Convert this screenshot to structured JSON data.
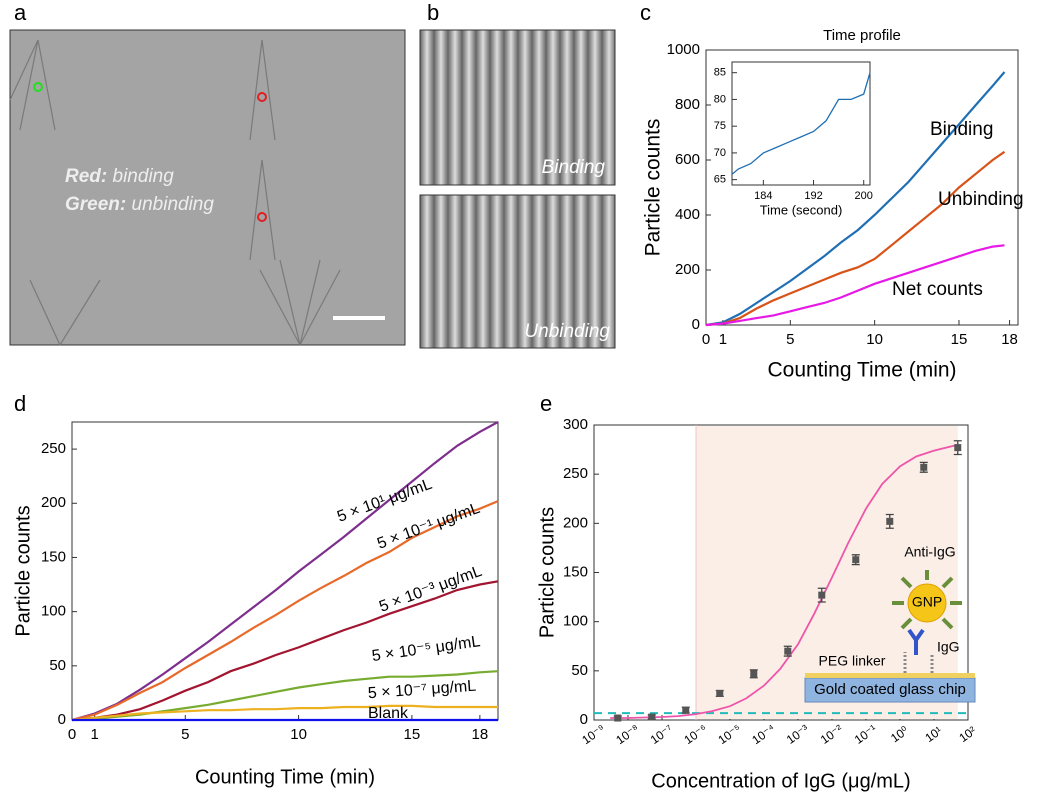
{
  "panel_labels": [
    "a",
    "b",
    "c",
    "d",
    "e"
  ],
  "image_a": {
    "red_label": "Red:",
    "red_text": "binding",
    "green_label": "Green:",
    "green_text": "unbinding"
  },
  "image_b": {
    "labels": [
      "Binding",
      "Unbinding"
    ]
  },
  "chart_data": [
    {
      "type": "line",
      "title": "Time profile",
      "xlabel": "Counting Time (min)",
      "ylabel": "Particle counts",
      "x": [
        0,
        1,
        2,
        3,
        4,
        5,
        6,
        7,
        8,
        9,
        10,
        11,
        12,
        13,
        14,
        15,
        16,
        17,
        17.7
      ],
      "series": [
        {
          "name": "Binding",
          "color": "#1f6fb4",
          "values": [
            0,
            10,
            40,
            80,
            120,
            160,
            205,
            250,
            300,
            345,
            400,
            460,
            520,
            590,
            660,
            730,
            800,
            870,
            920
          ]
        },
        {
          "name": "Unbinding",
          "color": "#d95319",
          "values": [
            0,
            5,
            25,
            60,
            90,
            115,
            140,
            165,
            190,
            210,
            240,
            290,
            340,
            390,
            440,
            500,
            550,
            600,
            630
          ]
        },
        {
          "name": "Net counts",
          "color": "#e619e6",
          "values": [
            0,
            5,
            15,
            25,
            35,
            50,
            65,
            80,
            100,
            125,
            150,
            170,
            190,
            210,
            230,
            250,
            270,
            285,
            290
          ]
        }
      ],
      "xlim": [
        0,
        18.5
      ],
      "ylim": [
        0,
        1000
      ],
      "xticks": [
        0,
        1,
        5,
        10,
        15,
        18
      ],
      "yticks": [
        0,
        200,
        400,
        600,
        800,
        1000
      ],
      "inset": {
        "type": "line",
        "xlabel": "Time (second)",
        "color": "#1f6fb4",
        "x": [
          179,
          180,
          182,
          184,
          186,
          188,
          190,
          192,
          194,
          196,
          198,
          200,
          201
        ],
        "values": [
          66,
          67,
          68,
          70,
          71,
          72,
          73,
          74,
          76,
          80,
          80,
          81,
          85
        ],
        "xlim": [
          179,
          201
        ],
        "ylim": [
          64,
          87
        ],
        "xticks": [
          184,
          192,
          200
        ],
        "yticks": [
          65,
          70,
          75,
          80,
          85
        ]
      }
    },
    {
      "type": "line",
      "xlabel": "Counting Time (min)",
      "ylabel": "Particle counts",
      "x": [
        0,
        1,
        2,
        3,
        4,
        5,
        6,
        7,
        8,
        9,
        10,
        11,
        12,
        13,
        14,
        15,
        16,
        17,
        18,
        18.8
      ],
      "series": [
        {
          "name": "5 × 10¹ μg/mL",
          "color": "#7e2f8e",
          "values": [
            0,
            6,
            15,
            28,
            42,
            57,
            72,
            88,
            104,
            120,
            137,
            153,
            169,
            186,
            203,
            220,
            237,
            253,
            266,
            275
          ]
        },
        {
          "name": "5 × 10⁻¹ μg/mL",
          "color": "#e86a2a",
          "values": [
            0,
            5,
            14,
            25,
            35,
            48,
            60,
            72,
            85,
            97,
            110,
            122,
            133,
            145,
            155,
            168,
            178,
            188,
            195,
            202
          ]
        },
        {
          "name": "5 × 10⁻³ μg/mL",
          "color": "#a2142f",
          "values": [
            0,
            2,
            5,
            10,
            18,
            27,
            35,
            45,
            52,
            60,
            67,
            75,
            83,
            90,
            98,
            105,
            112,
            120,
            125,
            128
          ]
        },
        {
          "name": "5 × 10⁻⁵ μg/mL",
          "color": "#77ac30",
          "values": [
            0,
            1,
            3,
            5,
            8,
            11,
            14,
            18,
            22,
            26,
            30,
            33,
            36,
            38,
            40,
            40,
            41,
            42,
            44,
            45
          ]
        },
        {
          "name": "5 × 10⁻⁷ μg/mL",
          "color": "#edb120",
          "values": [
            0,
            2,
            4,
            6,
            7,
            8,
            9,
            9,
            10,
            10,
            11,
            11,
            12,
            12,
            13,
            13,
            12,
            12,
            12,
            12
          ]
        },
        {
          "name": "Blank",
          "color": "#1010ee",
          "values": [
            0,
            0,
            0,
            0,
            0,
            0,
            0,
            0,
            0,
            0,
            0,
            0,
            0,
            0,
            0,
            0,
            0,
            0,
            0,
            0
          ]
        }
      ],
      "xlim": [
        0,
        18.8
      ],
      "ylim": [
        0,
        275
      ],
      "xticks": [
        0,
        1,
        5,
        10,
        15,
        18
      ],
      "yticks": [
        0,
        50,
        100,
        150,
        200,
        250
      ]
    },
    {
      "type": "scatter",
      "xlabel": "Concentration of IgG (μg/mL)",
      "ylabel": "Particle counts",
      "xscale": "log",
      "x": [
        5e-09,
        5e-08,
        5e-07,
        5e-06,
        5e-05,
        0.0005,
        0.005,
        0.05,
        0.5,
        5,
        50
      ],
      "values": [
        2,
        3,
        10,
        27,
        47,
        70,
        127,
        163,
        202,
        257,
        277
      ],
      "errors": [
        2,
        2,
        3,
        3,
        4,
        5,
        7,
        5,
        7,
        5,
        7
      ],
      "color": "#555555",
      "fit": {
        "color": "#ee55aa",
        "x": [
          3e-09,
          1e-08,
          3e-08,
          1e-07,
          3e-07,
          1e-06,
          3e-06,
          1e-05,
          3e-05,
          0.0001,
          0.0003,
          0.001,
          0.003,
          0.01,
          0.03,
          0.1,
          0.3,
          1,
          3,
          10,
          30,
          50
        ],
        "values": [
          2,
          2,
          2.5,
          3,
          4,
          6,
          9,
          14,
          22,
          35,
          52,
          77,
          108,
          145,
          180,
          215,
          240,
          258,
          268,
          274,
          278,
          280
        ]
      },
      "reference_line": {
        "value": 7,
        "color": "#22bbbb"
      },
      "shaded_xrange": [
        1e-06,
        50
      ],
      "xlim": [
        1e-09,
        100
      ],
      "ylim": [
        0,
        300
      ],
      "xticks": [
        {
          "value": 1e-09,
          "label": "10⁻⁹"
        },
        {
          "value": 1e-08,
          "label": "10⁻⁸"
        },
        {
          "value": 1e-07,
          "label": "10⁻⁷"
        },
        {
          "value": 1e-06,
          "label": "10⁻⁶"
        },
        {
          "value": 1e-05,
          "label": "10⁻⁵"
        },
        {
          "value": 0.0001,
          "label": "10⁻⁴"
        },
        {
          "value": 0.001,
          "label": "10⁻³"
        },
        {
          "value": 0.01,
          "label": "10⁻²"
        },
        {
          "value": 0.1,
          "label": "10⁻¹"
        },
        {
          "value": 1,
          "label": "10⁰"
        },
        {
          "value": 10,
          "label": "10¹"
        },
        {
          "value": 100,
          "label": "10²"
        }
      ],
      "yticks": [
        0,
        50,
        100,
        150,
        200,
        250,
        300
      ],
      "diagram_labels": {
        "antibody": "Anti-IgG",
        "particle": "GNP",
        "target": "IgG",
        "linker": "PEG linker",
        "chip": "Gold coated glass chip"
      }
    }
  ]
}
